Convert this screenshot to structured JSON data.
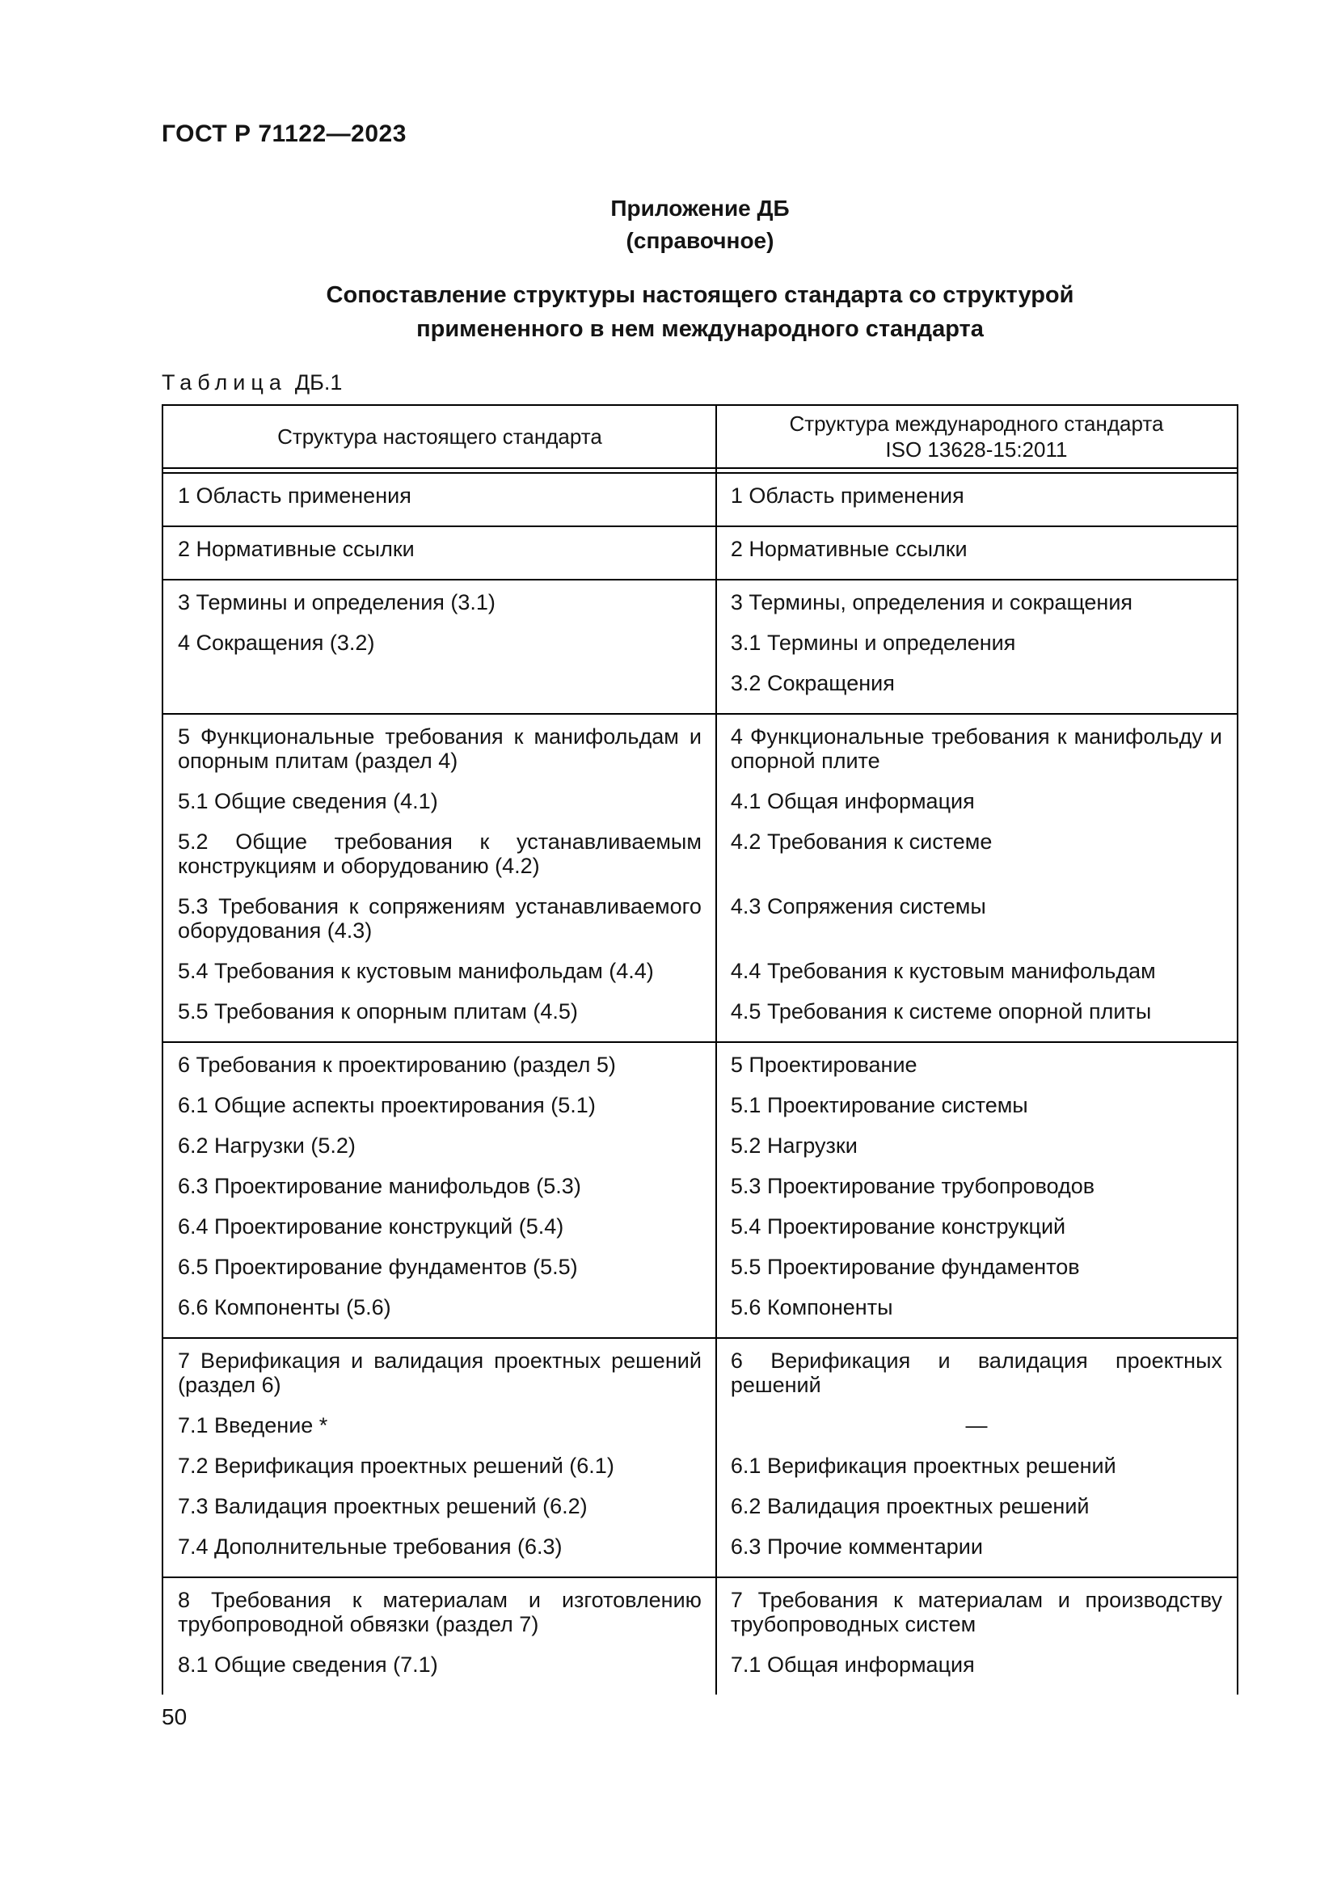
{
  "page": {
    "doc_code": "ГОСТ Р 71122—2023",
    "page_number": "50"
  },
  "appendix": {
    "label": "Приложение ДБ",
    "type": "(справочное)",
    "title_line1": "Сопоставление структуры настоящего стандарта со структурой",
    "title_line2": "примененного в нем международного стандарта"
  },
  "table": {
    "caption_word": "Таблица",
    "caption_number": "ДБ.1",
    "col1_header": "Структура настоящего стандарта",
    "col2_header_line1": "Структура международного стандарта",
    "col2_header_line2": "ISO 13628-15:2011",
    "rows": [
      {
        "pairs": [
          {
            "l": "1 Область применения",
            "r": "1 Область применения"
          }
        ]
      },
      {
        "pairs": [
          {
            "l": "2 Нормативные ссылки",
            "r": "2 Нормативные ссылки"
          }
        ]
      },
      {
        "pairs": [
          {
            "l": "3 Термины и определения (3.1)",
            "r": "3 Термины, определения и сокращения"
          },
          {
            "l": "4 Сокращения (3.2)",
            "r": "3.1 Термины и определения"
          },
          {
            "l": "",
            "r": "3.2 Сокращения"
          }
        ]
      },
      {
        "pairs": [
          {
            "l": "5 Функциональные требования к манифольдам и опорным плитам (раздел 4)",
            "r": "4 Функциональные требования к манифольду и опорной плите"
          },
          {
            "l": "5.1 Общие сведения (4.1)",
            "r": "4.1 Общая информация"
          },
          {
            "l": "5.2 Общие требования к устанавливаемым конструкциям и оборудованию (4.2)",
            "r": "4.2 Требования к системе"
          },
          {
            "l": "5.3 Требования к сопряжениям устанавливаемого оборудования (4.3)",
            "r": "4.3 Сопряжения системы"
          },
          {
            "l": "5.4 Требования к кустовым манифольдам (4.4)",
            "r": "4.4 Требования к кустовым манифольдам"
          },
          {
            "l": "5.5 Требования к опорным плитам (4.5)",
            "r": "4.5 Требования к системе опорной плиты"
          }
        ]
      },
      {
        "pairs": [
          {
            "l": "6 Требования к проектированию (раздел 5)",
            "r": "5 Проектирование"
          },
          {
            "l": "6.1 Общие аспекты проектирования (5.1)",
            "r": "5.1 Проектирование системы"
          },
          {
            "l": "6.2 Нагрузки (5.2)",
            "r": "5.2 Нагрузки"
          },
          {
            "l": "6.3 Проектирование манифольдов (5.3)",
            "r": "5.3 Проектирование трубопроводов"
          },
          {
            "l": "6.4 Проектирование конструкций (5.4)",
            "r": "5.4 Проектирование конструкций"
          },
          {
            "l": "6.5 Проектирование фундаментов (5.5)",
            "r": "5.5 Проектирование фундаментов"
          },
          {
            "l": "6.6 Компоненты (5.6)",
            "r": "5.6 Компоненты"
          }
        ]
      },
      {
        "pairs": [
          {
            "l": "7 Верификация и валидация проектных решений (раздел 6)",
            "r": "6 Верификация и валидация проектных решений"
          },
          {
            "l": "7.1 Введение *",
            "r": "—",
            "r_align": "center"
          },
          {
            "l": "7.2 Верификация проектных решений (6.1)",
            "r": "6.1 Верификация проектных решений"
          },
          {
            "l": "7.3 Валидация проектных решений (6.2)",
            "r": "6.2 Валидация проектных решений"
          },
          {
            "l": "7.4 Дополнительные требования (6.3)",
            "r": "6.3 Прочие комментарии"
          }
        ]
      },
      {
        "cut": true,
        "pairs": [
          {
            "l": "8 Требования к материалам и изготовлению трубопроводной обвязки (раздел 7)",
            "r": "7 Требования к материалам и производству трубопроводных систем"
          },
          {
            "l": "8.1 Общие сведения (7.1)",
            "r": "7.1 Общая информация"
          }
        ]
      }
    ]
  }
}
